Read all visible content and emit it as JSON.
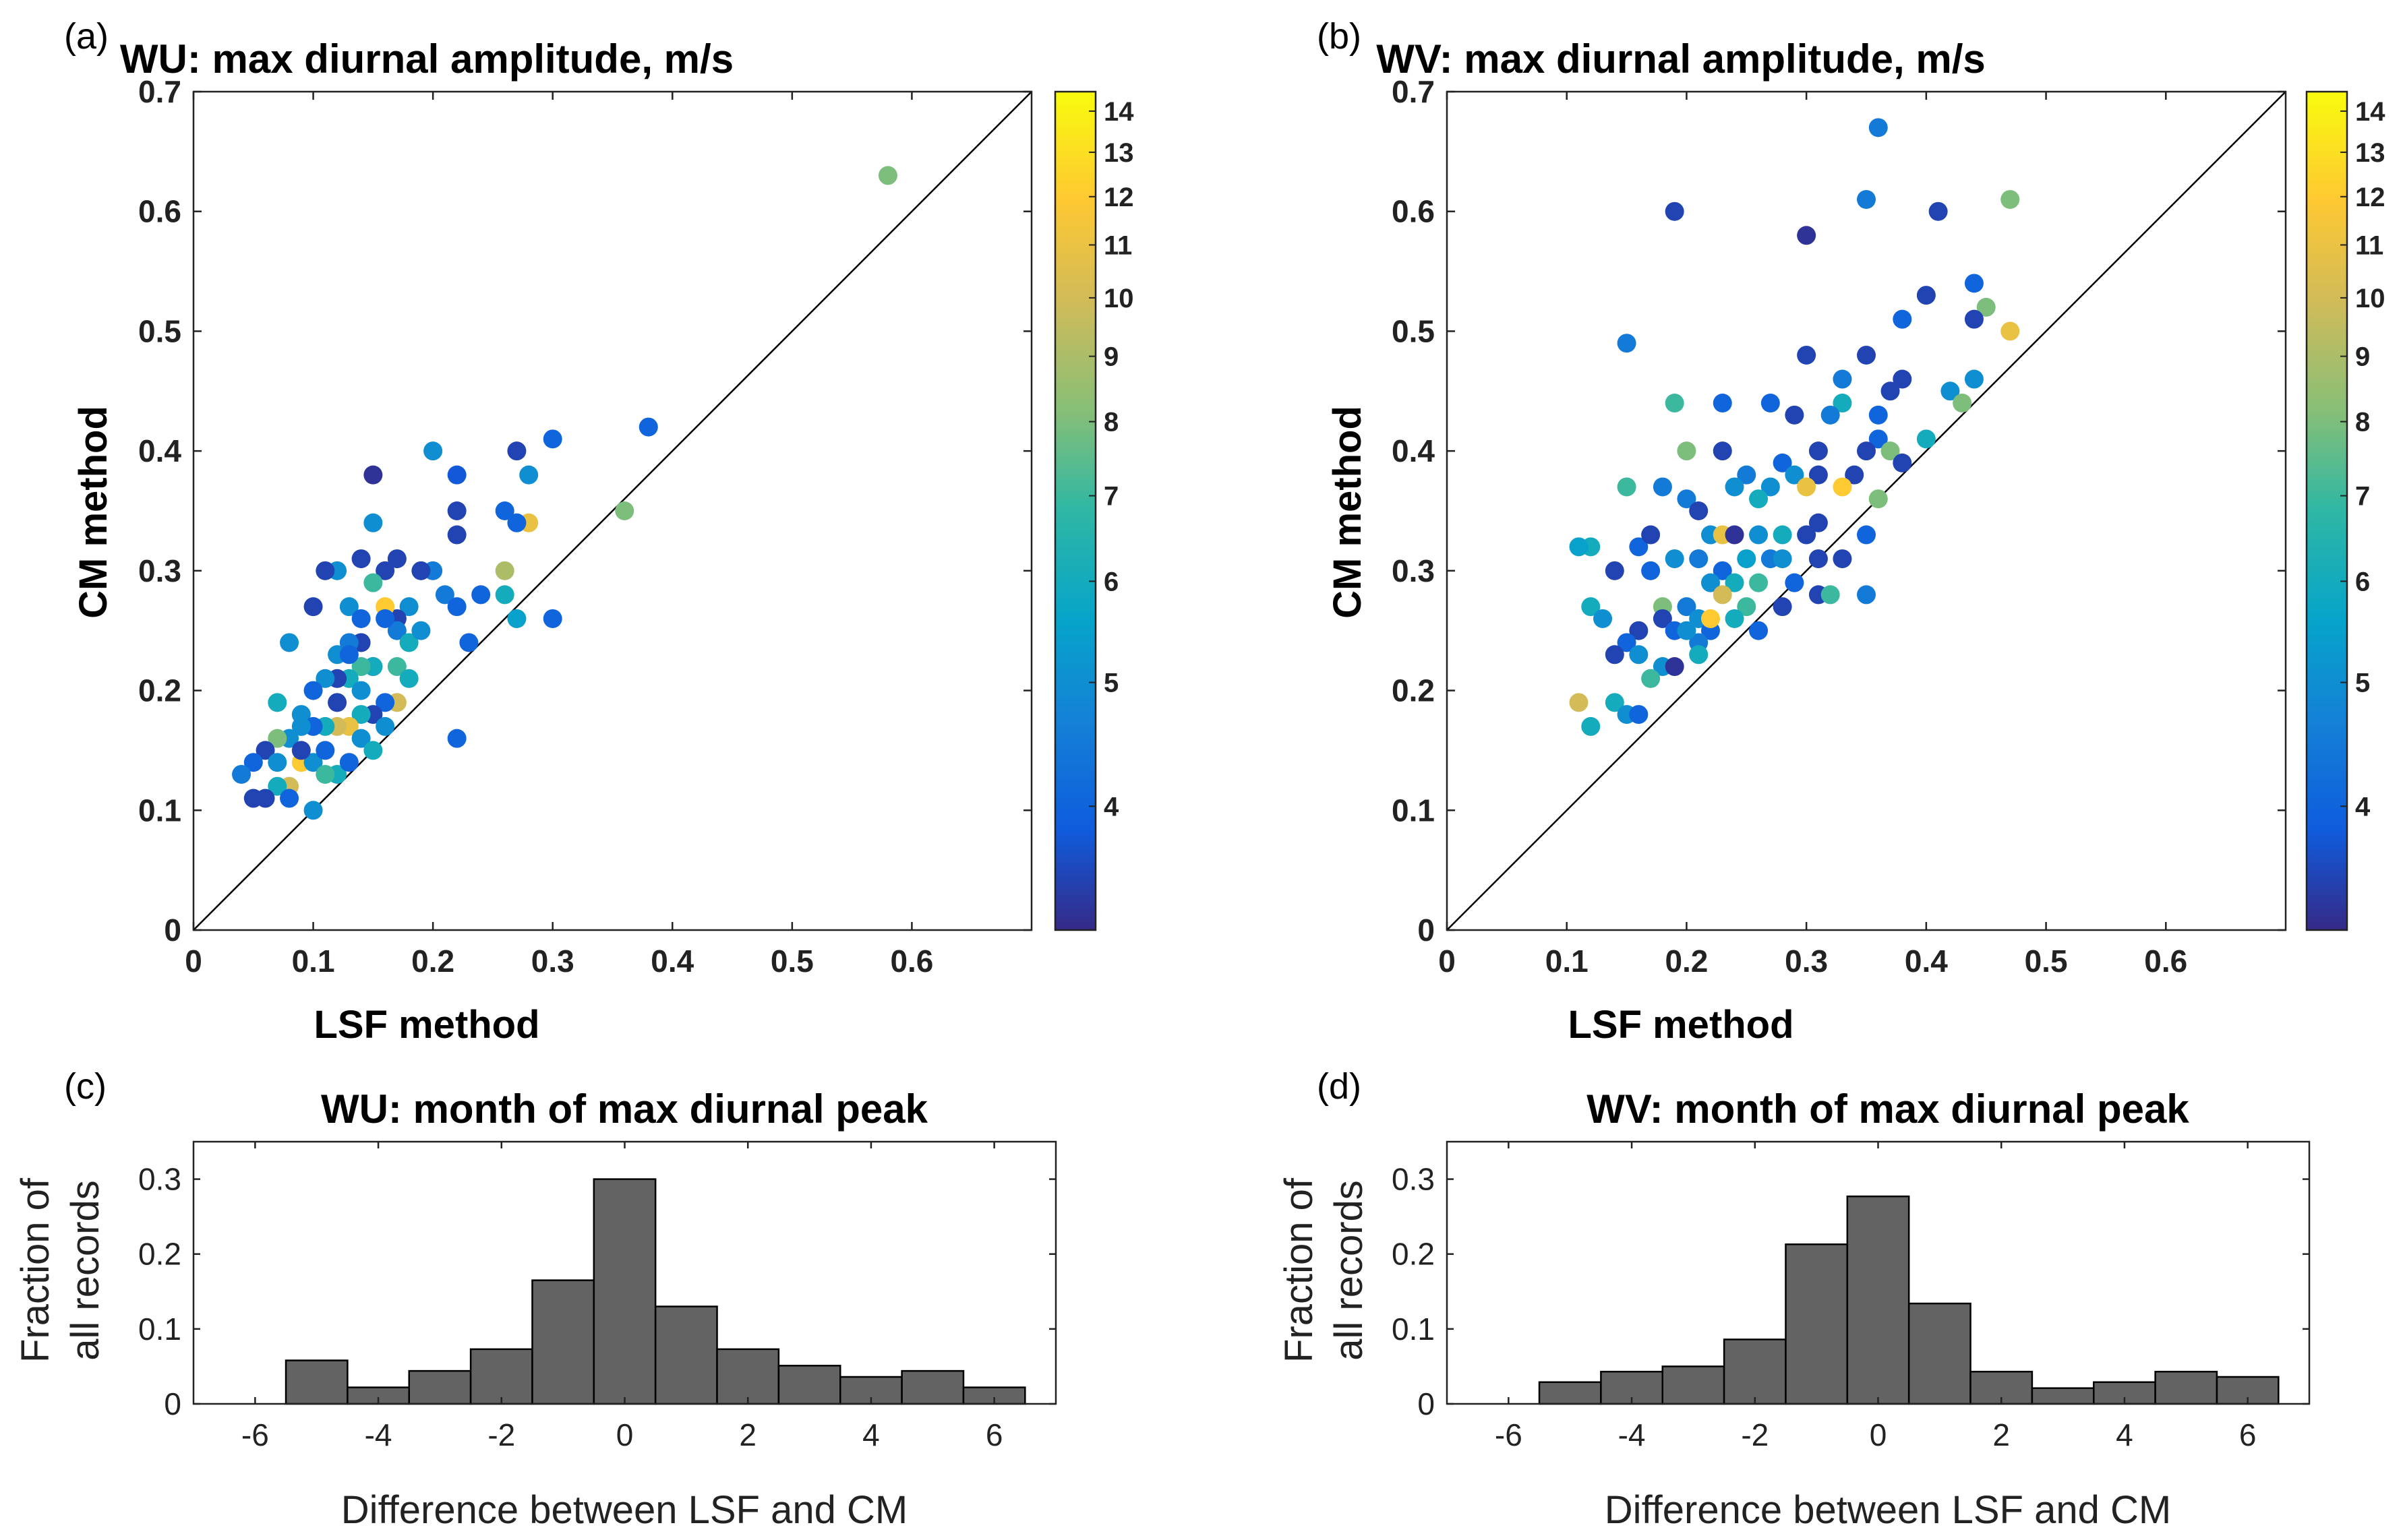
{
  "chart_data": [
    {
      "panel": "(a)",
      "type": "scatter",
      "title": "WU: max diurnal amplitude, m/s",
      "xlabel": "LSF method",
      "ylabel": "CM method",
      "xlim": [
        0,
        0.7
      ],
      "ylim": [
        0,
        0.7
      ],
      "xticks": [
        "0",
        "0.1",
        "0.2",
        "0.3",
        "0.4",
        "0.5",
        "0.6"
      ],
      "yticks": [
        "0",
        "0.1",
        "0.2",
        "0.3",
        "0.4",
        "0.5",
        "0.6",
        "0.7"
      ],
      "reference_line": "1:1",
      "colorbar": {
        "ticks": [
          "4",
          "5",
          "6",
          "7",
          "8",
          "9",
          "10",
          "11",
          "12",
          "13",
          "14"
        ],
        "range": [
          3.2,
          14.5
        ],
        "scale": "log"
      },
      "points": [
        [
          0.58,
          0.63,
          8
        ],
        [
          0.36,
          0.35,
          8
        ],
        [
          0.38,
          0.42,
          4
        ],
        [
          0.3,
          0.41,
          4
        ],
        [
          0.27,
          0.4,
          3.5
        ],
        [
          0.28,
          0.38,
          5
        ],
        [
          0.2,
          0.4,
          5
        ],
        [
          0.22,
          0.38,
          3.8
        ],
        [
          0.15,
          0.38,
          3.3
        ],
        [
          0.28,
          0.34,
          11
        ],
        [
          0.27,
          0.34,
          4
        ],
        [
          0.26,
          0.35,
          4
        ],
        [
          0.22,
          0.35,
          3.5
        ],
        [
          0.15,
          0.34,
          5
        ],
        [
          0.22,
          0.33,
          3.5
        ],
        [
          0.26,
          0.3,
          9
        ],
        [
          0.26,
          0.28,
          6
        ],
        [
          0.24,
          0.28,
          4
        ],
        [
          0.21,
          0.28,
          4.5
        ],
        [
          0.22,
          0.27,
          4
        ],
        [
          0.2,
          0.3,
          4.5
        ],
        [
          0.19,
          0.3,
          3.5
        ],
        [
          0.17,
          0.31,
          3.5
        ],
        [
          0.16,
          0.3,
          3.5
        ],
        [
          0.15,
          0.29,
          7
        ],
        [
          0.14,
          0.31,
          3.5
        ],
        [
          0.12,
          0.3,
          5
        ],
        [
          0.11,
          0.3,
          3.5
        ],
        [
          0.1,
          0.27,
          3.5
        ],
        [
          0.3,
          0.26,
          4
        ],
        [
          0.27,
          0.26,
          5.5
        ],
        [
          0.23,
          0.24,
          4
        ],
        [
          0.22,
          0.16,
          4
        ],
        [
          0.18,
          0.27,
          5
        ],
        [
          0.17,
          0.26,
          3.5
        ],
        [
          0.17,
          0.25,
          4.5
        ],
        [
          0.16,
          0.27,
          12
        ],
        [
          0.16,
          0.26,
          4
        ],
        [
          0.13,
          0.27,
          5
        ],
        [
          0.14,
          0.26,
          4
        ],
        [
          0.08,
          0.24,
          5
        ],
        [
          0.12,
          0.23,
          5
        ],
        [
          0.14,
          0.24,
          3.5
        ],
        [
          0.13,
          0.24,
          4.5
        ],
        [
          0.15,
          0.22,
          3.5
        ],
        [
          0.17,
          0.22,
          7
        ],
        [
          0.18,
          0.21,
          6
        ],
        [
          0.15,
          0.22,
          6
        ],
        [
          0.14,
          0.22,
          7
        ],
        [
          0.13,
          0.21,
          6
        ],
        [
          0.12,
          0.21,
          3.5
        ],
        [
          0.11,
          0.21,
          5
        ],
        [
          0.1,
          0.2,
          4
        ],
        [
          0.07,
          0.19,
          6
        ],
        [
          0.09,
          0.18,
          5
        ],
        [
          0.17,
          0.19,
          10
        ],
        [
          0.16,
          0.19,
          4
        ],
        [
          0.15,
          0.18,
          3.5
        ],
        [
          0.14,
          0.18,
          6
        ],
        [
          0.13,
          0.17,
          11
        ],
        [
          0.12,
          0.17,
          10
        ],
        [
          0.11,
          0.17,
          6
        ],
        [
          0.1,
          0.17,
          4
        ],
        [
          0.09,
          0.17,
          5
        ],
        [
          0.08,
          0.16,
          5
        ],
        [
          0.07,
          0.16,
          8
        ],
        [
          0.06,
          0.15,
          3.5
        ],
        [
          0.05,
          0.14,
          4
        ],
        [
          0.04,
          0.13,
          4.5
        ],
        [
          0.09,
          0.14,
          12
        ],
        [
          0.1,
          0.14,
          5
        ],
        [
          0.11,
          0.15,
          4
        ],
        [
          0.12,
          0.13,
          6
        ],
        [
          0.13,
          0.14,
          4
        ],
        [
          0.14,
          0.16,
          5
        ],
        [
          0.15,
          0.15,
          6
        ],
        [
          0.16,
          0.17,
          5
        ],
        [
          0.08,
          0.12,
          10
        ],
        [
          0.07,
          0.12,
          6
        ],
        [
          0.06,
          0.11,
          3.5
        ],
        [
          0.05,
          0.11,
          3.5
        ],
        [
          0.08,
          0.11,
          4
        ],
        [
          0.1,
          0.1,
          5
        ],
        [
          0.11,
          0.13,
          7
        ],
        [
          0.12,
          0.19,
          3.5
        ],
        [
          0.09,
          0.15,
          3.5
        ],
        [
          0.07,
          0.14,
          5
        ],
        [
          0.18,
          0.24,
          6
        ],
        [
          0.19,
          0.25,
          5
        ],
        [
          0.14,
          0.2,
          5
        ],
        [
          0.13,
          0.23,
          4
        ]
      ]
    },
    {
      "panel": "(b)",
      "type": "scatter",
      "title": "WV: max diurnal amplitude, m/s",
      "xlabel": "LSF method",
      "ylabel": "CM method",
      "xlim": [
        0,
        0.7
      ],
      "ylim": [
        0,
        0.7
      ],
      "xticks": [
        "0",
        "0.1",
        "0.2",
        "0.3",
        "0.4",
        "0.5",
        "0.6"
      ],
      "yticks": [
        "0",
        "0.1",
        "0.2",
        "0.3",
        "0.4",
        "0.5",
        "0.6",
        "0.7"
      ],
      "reference_line": "1:1",
      "colorbar": {
        "ticks": [
          "4",
          "5",
          "6",
          "7",
          "8",
          "9",
          "10",
          "11",
          "12",
          "13",
          "14"
        ],
        "range": [
          3.2,
          14.5
        ],
        "scale": "log"
      },
      "points": [
        [
          0.36,
          0.67,
          4.5
        ],
        [
          0.35,
          0.61,
          4.5
        ],
        [
          0.47,
          0.61,
          8
        ],
        [
          0.41,
          0.6,
          3.5
        ],
        [
          0.19,
          0.6,
          3.5
        ],
        [
          0.3,
          0.58,
          3.3
        ],
        [
          0.44,
          0.54,
          4
        ],
        [
          0.4,
          0.53,
          3.5
        ],
        [
          0.45,
          0.52,
          8
        ],
        [
          0.47,
          0.5,
          11
        ],
        [
          0.44,
          0.51,
          3.5
        ],
        [
          0.38,
          0.51,
          4
        ],
        [
          0.15,
          0.49,
          4.5
        ],
        [
          0.35,
          0.48,
          3.5
        ],
        [
          0.3,
          0.48,
          3.5
        ],
        [
          0.33,
          0.46,
          4.5
        ],
        [
          0.38,
          0.46,
          3.5
        ],
        [
          0.44,
          0.46,
          5
        ],
        [
          0.42,
          0.45,
          5
        ],
        [
          0.37,
          0.45,
          3.5
        ],
        [
          0.33,
          0.44,
          6
        ],
        [
          0.19,
          0.44,
          7
        ],
        [
          0.23,
          0.44,
          4
        ],
        [
          0.27,
          0.44,
          4
        ],
        [
          0.32,
          0.43,
          4.5
        ],
        [
          0.36,
          0.43,
          4
        ],
        [
          0.29,
          0.43,
          3.5
        ],
        [
          0.43,
          0.44,
          8
        ],
        [
          0.36,
          0.41,
          4
        ],
        [
          0.4,
          0.41,
          6
        ],
        [
          0.37,
          0.4,
          8
        ],
        [
          0.35,
          0.4,
          3.5
        ],
        [
          0.31,
          0.4,
          3.5
        ],
        [
          0.28,
          0.39,
          4
        ],
        [
          0.23,
          0.4,
          3.5
        ],
        [
          0.2,
          0.4,
          8
        ],
        [
          0.18,
          0.37,
          4.5
        ],
        [
          0.15,
          0.37,
          7
        ],
        [
          0.38,
          0.39,
          3.5
        ],
        [
          0.34,
          0.38,
          3.5
        ],
        [
          0.31,
          0.38,
          3.5
        ],
        [
          0.29,
          0.38,
          5
        ],
        [
          0.25,
          0.38,
          4.5
        ],
        [
          0.24,
          0.37,
          5
        ],
        [
          0.27,
          0.37,
          5
        ],
        [
          0.3,
          0.37,
          11
        ],
        [
          0.33,
          0.37,
          12
        ],
        [
          0.26,
          0.36,
          6
        ],
        [
          0.36,
          0.36,
          8
        ],
        [
          0.2,
          0.36,
          4.5
        ],
        [
          0.21,
          0.35,
          3.5
        ],
        [
          0.22,
          0.33,
          5
        ],
        [
          0.23,
          0.33,
          11
        ],
        [
          0.24,
          0.33,
          3.3
        ],
        [
          0.26,
          0.33,
          5
        ],
        [
          0.28,
          0.33,
          6
        ],
        [
          0.31,
          0.34,
          3.5
        ],
        [
          0.35,
          0.33,
          4
        ],
        [
          0.3,
          0.33,
          3.5
        ],
        [
          0.12,
          0.32,
          6
        ],
        [
          0.11,
          0.32,
          5.5
        ],
        [
          0.16,
          0.32,
          4
        ],
        [
          0.19,
          0.31,
          5
        ],
        [
          0.21,
          0.31,
          4.5
        ],
        [
          0.23,
          0.3,
          4
        ],
        [
          0.25,
          0.31,
          5.5
        ],
        [
          0.27,
          0.31,
          4.5
        ],
        [
          0.28,
          0.31,
          5
        ],
        [
          0.31,
          0.31,
          3.5
        ],
        [
          0.33,
          0.31,
          3.5
        ],
        [
          0.14,
          0.3,
          3.5
        ],
        [
          0.17,
          0.3,
          4
        ],
        [
          0.22,
          0.29,
          5
        ],
        [
          0.24,
          0.29,
          6
        ],
        [
          0.26,
          0.29,
          7
        ],
        [
          0.29,
          0.29,
          4
        ],
        [
          0.31,
          0.28,
          3.5
        ],
        [
          0.32,
          0.28,
          7
        ],
        [
          0.35,
          0.28,
          4.5
        ],
        [
          0.12,
          0.27,
          6
        ],
        [
          0.18,
          0.27,
          8
        ],
        [
          0.2,
          0.27,
          4.5
        ],
        [
          0.23,
          0.28,
          10
        ],
        [
          0.25,
          0.27,
          7
        ],
        [
          0.28,
          0.27,
          3.5
        ],
        [
          0.13,
          0.26,
          5
        ],
        [
          0.16,
          0.25,
          3.5
        ],
        [
          0.18,
          0.26,
          3.5
        ],
        [
          0.21,
          0.26,
          5
        ],
        [
          0.22,
          0.25,
          4
        ],
        [
          0.19,
          0.25,
          4
        ],
        [
          0.26,
          0.25,
          4
        ],
        [
          0.15,
          0.24,
          4
        ],
        [
          0.14,
          0.23,
          3.5
        ],
        [
          0.16,
          0.23,
          5
        ],
        [
          0.18,
          0.22,
          5
        ],
        [
          0.19,
          0.22,
          3.3
        ],
        [
          0.21,
          0.24,
          4.5
        ],
        [
          0.21,
          0.23,
          6
        ],
        [
          0.22,
          0.26,
          12
        ],
        [
          0.17,
          0.21,
          7
        ],
        [
          0.14,
          0.19,
          6
        ],
        [
          0.15,
          0.18,
          5
        ],
        [
          0.16,
          0.18,
          4
        ],
        [
          0.11,
          0.19,
          10
        ],
        [
          0.12,
          0.17,
          6
        ],
        [
          0.2,
          0.25,
          5
        ],
        [
          0.24,
          0.26,
          6
        ],
        [
          0.17,
          0.33,
          3.5
        ]
      ]
    },
    {
      "panel": "(c)",
      "type": "bar",
      "title": "WU: month of max diurnal peak",
      "xlabel": "Difference between LSF and CM",
      "ylabel_line1": "Fraction of",
      "ylabel_line2": "all records",
      "xlim": [
        -7,
        7
      ],
      "ylim": [
        0,
        0.35
      ],
      "xticks": [
        "-6",
        "-4",
        "-2",
        "0",
        "2",
        "4",
        "6"
      ],
      "yticks": [
        "0",
        "0.1",
        "0.2",
        "0.3"
      ],
      "bin_centers": [
        -6,
        -5,
        -4,
        -3,
        -2,
        -1,
        0,
        1,
        2,
        3,
        4,
        5,
        6
      ],
      "values": [
        0,
        0.058,
        0.022,
        0.044,
        0.073,
        0.165,
        0.3,
        0.13,
        0.073,
        0.051,
        0.036,
        0.044,
        0.022
      ],
      "bar_color": "#636363"
    },
    {
      "panel": "(d)",
      "type": "bar",
      "title": "WV: month of max diurnal peak",
      "xlabel": "Difference between LSF and CM",
      "ylabel_line1": "Fraction of",
      "ylabel_line2": "all records",
      "xlim": [
        -7,
        7
      ],
      "ylim": [
        0,
        0.35
      ],
      "xticks": [
        "-6",
        "-4",
        "-2",
        "0",
        "2",
        "4",
        "6"
      ],
      "yticks": [
        "0",
        "0.1",
        "0.2",
        "0.3"
      ],
      "bin_centers": [
        -6,
        -5,
        -4,
        -3,
        -2,
        -1,
        0,
        1,
        2,
        3,
        4,
        5,
        6
      ],
      "values": [
        0,
        0.029,
        0.043,
        0.05,
        0.086,
        0.213,
        0.277,
        0.134,
        0.043,
        0.021,
        0.029,
        0.043,
        0.036
      ],
      "bar_color": "#636363"
    }
  ]
}
